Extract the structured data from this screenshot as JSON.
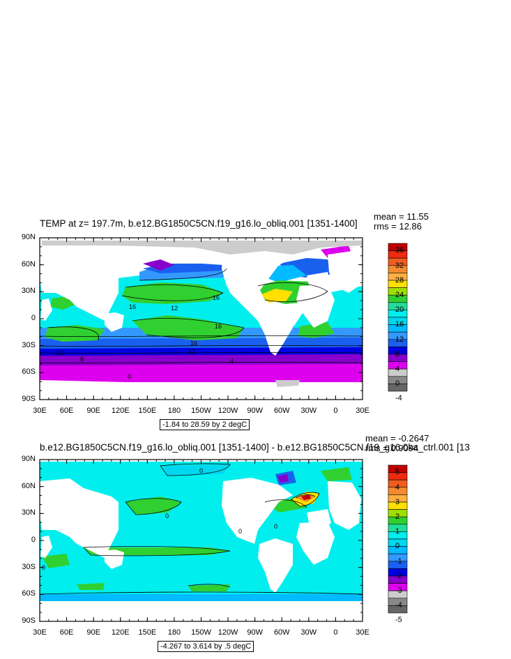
{
  "panels": [
    {
      "title": "TEMP at z= 197.7m, b.e12.BG1850C5CN.f19_g16.lo_obliq.001 [1351-1400]",
      "mean": "mean = 11.55",
      "rms": "rms = 12.86",
      "range_label": "-1.84 to 28.59 by 2 degC",
      "y_ticks": [
        "90N",
        "60N",
        "30N",
        "0",
        "30S",
        "60S",
        "90S"
      ],
      "x_ticks": [
        "30E",
        "60E",
        "90E",
        "120E",
        "150E",
        "180",
        "150W",
        "120W",
        "90W",
        "60W",
        "30W",
        "0",
        "30E"
      ],
      "colorbar": {
        "labels": [
          "36",
          "32",
          "28",
          "24",
          "20",
          "16",
          "12",
          "8",
          "4",
          "0",
          "-4"
        ],
        "colors": [
          "#c00000",
          "#ee2a10",
          "#f05c20",
          "#f58a30",
          "#ffb040",
          "#ffe000",
          "#a0e000",
          "#30d030",
          "#22dd99",
          "#00eeee",
          "#00d8f0",
          "#00bbff",
          "#3399ff",
          "#1a60ee",
          "#0000e0",
          "#8800cc",
          "#dd00ee",
          "#cccccc",
          "#888888",
          "#666666"
        ]
      },
      "contour_labels": [
        "16",
        "12",
        "16",
        "16",
        "12",
        "16",
        "12",
        "8",
        "0",
        "4"
      ]
    },
    {
      "title": "b.e12.BG1850C5CN.f19_g16.lo_obliq.001 [1351-1400] - b.e12.BG1850C5CN.f19_g16.0ka_ctrl.001 [13",
      "mean": "mean = -0.2647",
      "rms": "rms = 0.9094",
      "range_label": "-4.267 to 3.614 by .5 degC",
      "y_ticks": [
        "90N",
        "60N",
        "30N",
        "0",
        "30S",
        "60S",
        "90S"
      ],
      "x_ticks": [
        "30E",
        "60E",
        "90E",
        "120E",
        "150E",
        "180",
        "150W",
        "120W",
        "90W",
        "60W",
        "30W",
        "0",
        "30E"
      ],
      "colorbar": {
        "labels": [
          "5",
          "4",
          "3",
          "2",
          "1",
          "0",
          "-1",
          "-2",
          "-3",
          "-4",
          "-5"
        ],
        "colors": [
          "#c00000",
          "#ee2a10",
          "#f05c20",
          "#f58a30",
          "#ffb040",
          "#ffe000",
          "#a0e000",
          "#30d030",
          "#22dd99",
          "#00eeee",
          "#00d8f0",
          "#00bbff",
          "#3399ff",
          "#1a60ee",
          "#0000e0",
          "#8800cc",
          "#dd00ee",
          "#cccccc",
          "#888888",
          "#666666"
        ]
      },
      "contour_labels": [
        "0",
        "0",
        "0",
        "0",
        "0"
      ]
    }
  ]
}
